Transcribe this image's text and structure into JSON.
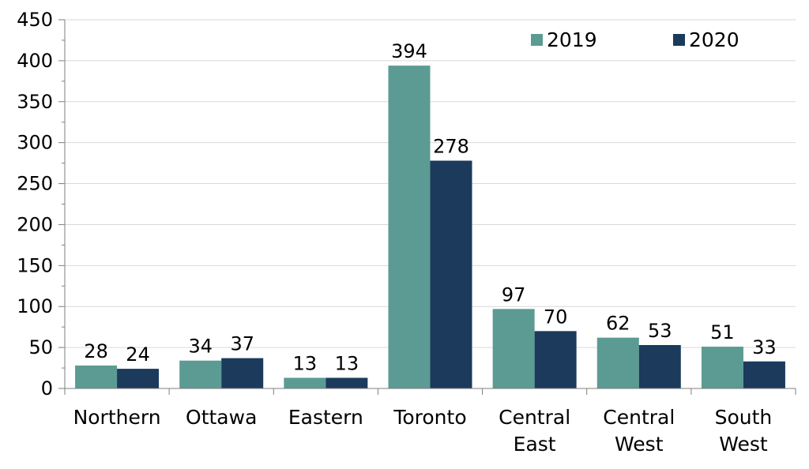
{
  "chart_data": {
    "type": "bar",
    "categories": [
      [
        "Northern"
      ],
      [
        "Ottawa"
      ],
      [
        "Eastern"
      ],
      [
        "Toronto"
      ],
      [
        "Central",
        "East"
      ],
      [
        "Central",
        "West"
      ],
      [
        "South",
        "West"
      ]
    ],
    "series": [
      {
        "name": "2019",
        "color": "#5b9b93",
        "values": [
          28,
          34,
          13,
          394,
          97,
          62,
          51
        ]
      },
      {
        "name": "2020",
        "color": "#1b3a5c",
        "values": [
          24,
          37,
          13,
          278,
          70,
          53,
          33
        ]
      }
    ],
    "ylim": [
      0,
      450
    ],
    "yticks": [
      "0",
      "50",
      "100",
      "150",
      "200",
      "250",
      "300",
      "350",
      "400",
      "450"
    ],
    "grid": true,
    "legend_position": "top-right",
    "title": "",
    "xlabel": "",
    "ylabel": ""
  }
}
